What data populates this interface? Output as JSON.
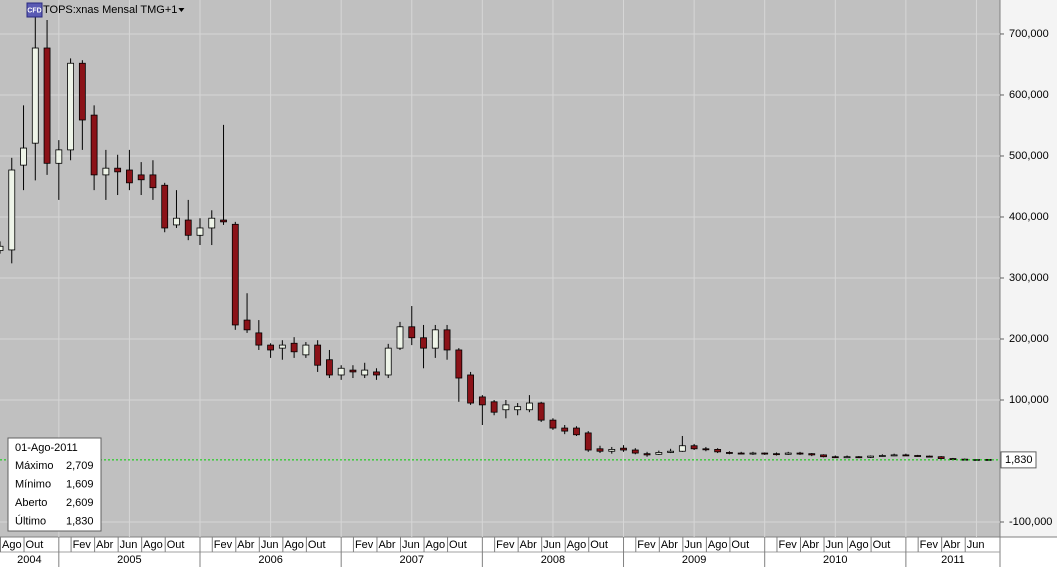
{
  "chart_data": {
    "type": "candlestick",
    "title": "TOPS:xnas Mensal TMG+1",
    "icon_text": "CFD",
    "categories": [
      "Ago",
      null,
      "Out",
      null,
      null,
      null,
      "Fev",
      null,
      "Abr",
      null,
      "Jun",
      null,
      "Ago",
      null,
      "Out",
      null,
      null,
      null,
      "Fev",
      null,
      "Abr",
      null,
      "Jun",
      null,
      "Ago",
      null,
      "Out",
      null,
      null,
      null,
      "Fev",
      null,
      "Abr",
      null,
      "Jun",
      null,
      "Ago",
      null,
      "Out",
      null,
      null,
      null,
      "Fev",
      null,
      "Abr",
      null,
      "Jun",
      null,
      "Ago",
      null,
      "Out",
      null,
      null,
      null,
      "Fev",
      null,
      "Abr",
      null,
      "Jun",
      null,
      "Ago",
      null,
      "Out",
      null,
      null,
      null,
      "Fev",
      null,
      "Abr",
      null,
      "Jun",
      null,
      "Ago",
      null,
      "Out",
      null,
      null,
      null,
      "Fev",
      null,
      "Abr",
      null,
      "Jun",
      null,
      null
    ],
    "years": [
      "2004",
      "2005",
      "2006",
      "2007",
      "2008",
      "2009",
      "2010",
      "2011"
    ],
    "open": [
      345000,
      346000,
      485000,
      521000,
      677000,
      488000,
      510000,
      652000,
      567000,
      469000,
      480000,
      477000,
      469000,
      469000,
      452000,
      387000,
      395000,
      370000,
      382000,
      395000,
      388000,
      231000,
      210000,
      190000,
      185000,
      193000,
      174000,
      190000,
      166000,
      141000,
      149000,
      141000,
      146000,
      141000,
      185000,
      220000,
      202000,
      185000,
      215000,
      182000,
      141000,
      105000,
      97000,
      84000,
      84000,
      84000,
      95000,
      67000,
      54000,
      54000,
      46000,
      20000,
      16000,
      21000,
      18000,
      12000,
      11000,
      14000,
      16000,
      25000,
      20000,
      19000,
      14000,
      13000,
      12000,
      13000,
      12000,
      11000,
      13000,
      12000,
      10000,
      7000,
      6000,
      7000,
      6000,
      8000,
      9000,
      10000,
      9000,
      8000,
      7000,
      4000,
      3000,
      2600,
      2609
    ],
    "high": [
      360000,
      497000,
      583000,
      731000,
      723000,
      526000,
      660000,
      657000,
      583000,
      510000,
      502000,
      510000,
      490000,
      493000,
      456000,
      444000,
      428000,
      398000,
      411000,
      551000,
      392000,
      275000,
      231000,
      193000,
      198000,
      203000,
      195000,
      198000,
      182000,
      157000,
      157000,
      161000,
      152000,
      192000,
      228000,
      254000,
      223000,
      223000,
      223000,
      185000,
      146000,
      108000,
      100000,
      100000,
      95000,
      108000,
      97000,
      70000,
      59000,
      57000,
      49000,
      25000,
      23000,
      26000,
      21000,
      15000,
      17000,
      20000,
      41000,
      28000,
      23000,
      21000,
      16000,
      15000,
      15000,
      14000,
      14000,
      15000,
      15000,
      13000,
      11000,
      9000,
      9000,
      8000,
      9000,
      11000,
      12000,
      12000,
      10000,
      9000,
      8000,
      5000,
      4000,
      3000,
      2709
    ],
    "low": [
      340000,
      324000,
      444000,
      460000,
      469000,
      428000,
      493000,
      510000,
      444000,
      428000,
      436000,
      444000,
      436000,
      428000,
      375000,
      382000,
      362000,
      354000,
      354000,
      387000,
      215000,
      210000,
      182000,
      169000,
      166000,
      169000,
      169000,
      146000,
      136000,
      133000,
      136000,
      136000,
      133000,
      136000,
      182000,
      190000,
      152000,
      169000,
      166000,
      97000,
      92000,
      59000,
      75000,
      70000,
      75000,
      80000,
      64000,
      51000,
      44000,
      41000,
      15000,
      13000,
      12000,
      15000,
      11000,
      7000,
      10000,
      13000,
      15000,
      18000,
      16000,
      13000,
      11000,
      11000,
      10000,
      10000,
      9000,
      10000,
      10000,
      8000,
      6000,
      5000,
      5000,
      5000,
      5000,
      7000,
      8000,
      8000,
      7000,
      6000,
      3000,
      2000,
      2000,
      2200,
      1609
    ],
    "close": [
      352000,
      477000,
      513000,
      677000,
      488000,
      510000,
      652000,
      559000,
      469000,
      480000,
      474000,
      456000,
      461000,
      448000,
      382000,
      398000,
      370000,
      382000,
      398000,
      392000,
      223000,
      215000,
      190000,
      182000,
      190000,
      179000,
      190000,
      157000,
      141000,
      152000,
      146000,
      149000,
      141000,
      185000,
      220000,
      202000,
      185000,
      215000,
      182000,
      136000,
      95000,
      92000,
      80000,
      92000,
      89000,
      95000,
      67000,
      54000,
      49000,
      43000,
      18000,
      16000,
      19000,
      18000,
      13000,
      10000,
      14000,
      16000,
      25000,
      20000,
      19000,
      15000,
      13000,
      12000,
      13000,
      12000,
      11000,
      13000,
      12000,
      10000,
      7000,
      6000,
      7000,
      6000,
      8000,
      9000,
      10000,
      9000,
      8000,
      7000,
      4000,
      3000,
      2500,
      2600,
      1830
    ],
    "up_color": "#eef4e8",
    "down_color": "#8b1218",
    "ylim": [
      -124600,
      755700
    ],
    "yticks": [
      {
        "value": -100000,
        "label": "-100,000"
      },
      {
        "value": 100000,
        "label": "100,000"
      },
      {
        "value": 200000,
        "label": "200,000"
      },
      {
        "value": 300000,
        "label": "300,000"
      },
      {
        "value": 400000,
        "label": "400,000"
      },
      {
        "value": 500000,
        "label": "500,000"
      },
      {
        "value": 600000,
        "label": "600,000"
      },
      {
        "value": 700000,
        "label": "700,000"
      }
    ],
    "grid": true,
    "last_price": {
      "value": 1830,
      "label": "1,830",
      "color": "#00d000"
    },
    "info_box": {
      "date": "01-Ago-2011",
      "rows": [
        [
          "Máximo",
          "2,709"
        ],
        [
          "Mínimo",
          "1,609"
        ],
        [
          "Aberto",
          "2,609"
        ],
        [
          "Último",
          "1,830"
        ]
      ]
    }
  }
}
